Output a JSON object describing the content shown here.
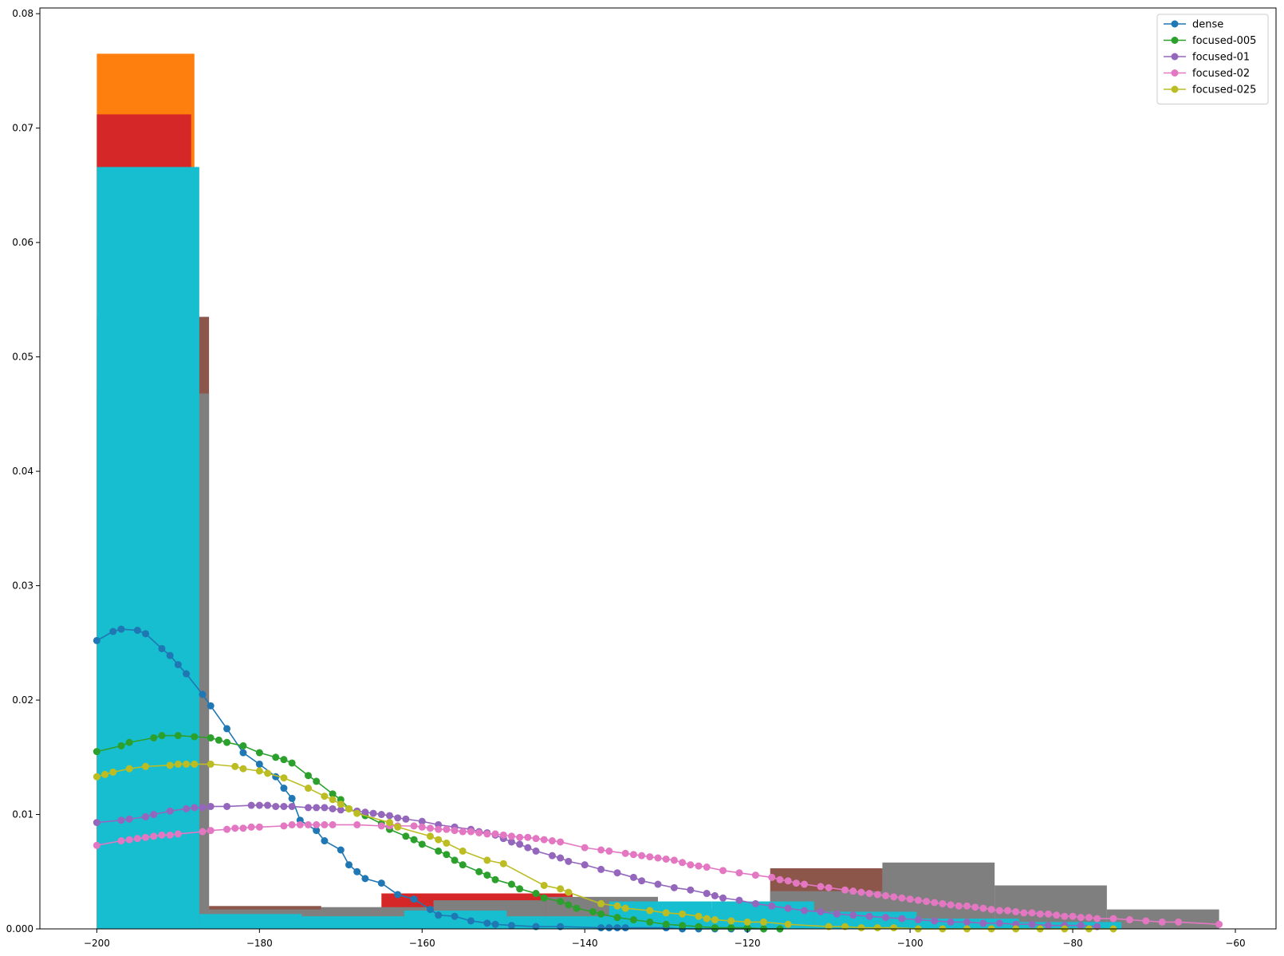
{
  "chart_data": {
    "type": "line",
    "title": "",
    "xlabel": "",
    "ylabel": "",
    "xlim": [
      -207,
      -55
    ],
    "ylim": [
      0,
      0.0805
    ],
    "xticks": [
      -200,
      -180,
      -160,
      -140,
      -120,
      -100,
      -80,
      -60
    ],
    "xtick_labels": [
      "−200",
      "−180",
      "−160",
      "−140",
      "−120",
      "−100",
      "−80",
      "−60"
    ],
    "yticks": [
      0,
      0.01,
      0.02,
      0.03,
      0.04,
      0.05,
      0.06,
      0.07,
      0.08
    ],
    "ytick_labels": [
      "0.000",
      "0.01",
      "0.02",
      "0.03",
      "0.04",
      "0.05",
      "0.06",
      "0.07",
      "0.08"
    ],
    "grid": false,
    "legend_position": "top-right",
    "histograms": [
      {
        "color": "#ff7f0e",
        "bins": [
          [
            -200,
            -188,
            0.0765
          ],
          [
            -188,
            -186.5,
            0.0003
          ],
          [
            -186.5,
            -175,
            0.0001
          ]
        ]
      },
      {
        "color": "#d62728",
        "bins": [
          [
            -200,
            -188.4,
            0.0712
          ],
          [
            -165,
            -141.5,
            0.0031
          ],
          [
            -141.5,
            -118,
            0.0003
          ]
        ]
      },
      {
        "color": "#8c564b",
        "bins": [
          [
            -200,
            -186.2,
            0.0535
          ],
          [
            -186.2,
            -172.4,
            0.002
          ],
          [
            -117.2,
            -103.4,
            0.0053
          ],
          [
            -103.4,
            -89.6,
            0.0038
          ],
          [
            -89.6,
            -75.8,
            0.0003
          ]
        ]
      },
      {
        "color": "#7f7f7f",
        "bins": [
          [
            -200,
            -186.2,
            0.0468
          ],
          [
            -186.2,
            -172.4,
            0.0017
          ],
          [
            -172.4,
            -158.6,
            0.0019
          ],
          [
            -158.6,
            -144.8,
            0.0025
          ],
          [
            -144.8,
            -131,
            0.0028
          ],
          [
            -131,
            -117.2,
            0.0017
          ],
          [
            -117.2,
            -103.4,
            0.0033
          ],
          [
            -103.4,
            -89.6,
            0.0058
          ],
          [
            -89.6,
            -75.8,
            0.0038
          ],
          [
            -75.8,
            -62,
            0.0017
          ]
        ]
      },
      {
        "color": "#17becf",
        "bins": [
          [
            -200,
            -187.4,
            0.0666
          ],
          [
            -187.4,
            -174.8,
            0.0013
          ],
          [
            -174.8,
            -162.2,
            0.0011
          ],
          [
            -162.2,
            -149.6,
            0.0016
          ],
          [
            -149.6,
            -137,
            0.0011
          ],
          [
            -137,
            -124.4,
            0.0024
          ],
          [
            -124.4,
            -111.8,
            0.0024
          ],
          [
            -111.8,
            -99.2,
            0.0015
          ],
          [
            -99.2,
            -86.6,
            0.0009
          ],
          [
            -86.6,
            -74,
            0.0006
          ]
        ]
      }
    ],
    "series": [
      {
        "name": "dense",
        "color": "#1f77b4",
        "x": [
          -200,
          -198,
          -197,
          -195,
          -194,
          -192,
          -191,
          -190,
          -189,
          -187,
          -186,
          -184,
          -182,
          -180,
          -178,
          -177,
          -176,
          -175,
          -173,
          -172,
          -170,
          -169,
          -168,
          -167,
          -165,
          -163,
          -161,
          -159,
          -158,
          -156,
          -154,
          -152,
          -151,
          -149,
          -146,
          -143,
          -138,
          -137,
          -136,
          -135,
          -130,
          -128,
          -126,
          -124,
          -122,
          -120,
          -118,
          -116
        ],
        "y": [
          0.0252,
          0.026,
          0.0262,
          0.0261,
          0.0258,
          0.0245,
          0.0239,
          0.0231,
          0.0223,
          0.0205,
          0.0195,
          0.0175,
          0.0154,
          0.0144,
          0.0133,
          0.0123,
          0.0114,
          0.0095,
          0.0086,
          0.0077,
          0.0069,
          0.0056,
          0.005,
          0.0044,
          0.004,
          0.003,
          0.0026,
          0.0017,
          0.0012,
          0.0011,
          0.0007,
          0.0005,
          0.0004,
          0.0003,
          0.0002,
          0.0002,
          0.0001,
          0.0001,
          0.0001,
          0.0001,
          0.0001,
          0,
          0,
          0,
          0,
          0,
          0,
          0
        ]
      },
      {
        "name": "focused-005",
        "color": "#2ca02c",
        "x": [
          -200,
          -197,
          -196,
          -193,
          -192,
          -190,
          -188,
          -186,
          -185,
          -184,
          -182,
          -180,
          -178,
          -177,
          -176,
          -174,
          -173,
          -171,
          -170,
          -169,
          -167,
          -165,
          -164,
          -162,
          -161,
          -160,
          -158,
          -157,
          -156,
          -155,
          -153,
          -152,
          -151,
          -149,
          -148,
          -146,
          -145,
          -143,
          -142,
          -141,
          -139,
          -138,
          -136,
          -134,
          -132,
          -130,
          -128,
          -126,
          -124,
          -122,
          -120,
          -118,
          -116
        ],
        "y": [
          0.0155,
          0.016,
          0.0163,
          0.0167,
          0.0169,
          0.0169,
          0.0168,
          0.0167,
          0.0165,
          0.0163,
          0.016,
          0.0154,
          0.015,
          0.0148,
          0.0145,
          0.0134,
          0.0129,
          0.0118,
          0.0113,
          0.0105,
          0.0099,
          0.0092,
          0.0087,
          0.0081,
          0.0078,
          0.0074,
          0.0068,
          0.0065,
          0.006,
          0.0056,
          0.005,
          0.0047,
          0.0043,
          0.0039,
          0.0035,
          0.0031,
          0.0027,
          0.0024,
          0.0021,
          0.0018,
          0.0015,
          0.0013,
          0.001,
          0.0008,
          0.0006,
          0.0004,
          0.0003,
          0.0002,
          0.0001,
          0.0001,
          0.0001,
          0,
          0
        ]
      },
      {
        "name": "focused-01",
        "color": "#9467bd",
        "x": [
          -200,
          -197,
          -196,
          -194,
          -193,
          -191,
          -189,
          -188,
          -187,
          -186,
          -184,
          -181,
          -180,
          -179,
          -178,
          -177,
          -176,
          -174,
          -173,
          -172,
          -171,
          -170,
          -168,
          -167,
          -166,
          -165,
          -164,
          -163,
          -162,
          -160,
          -158,
          -156,
          -154,
          -153,
          -152,
          -151,
          -150,
          -149,
          -148,
          -147,
          -146,
          -144,
          -143,
          -142,
          -140,
          -138,
          -136,
          -134,
          -133,
          -131,
          -129,
          -127,
          -125,
          -124,
          -123,
          -121,
          -119,
          -117,
          -115,
          -113,
          -111,
          -109,
          -107,
          -105,
          -103,
          -101,
          -99,
          -97,
          -95,
          -93,
          -91,
          -89,
          -87,
          -85,
          -83,
          -81,
          -79,
          -77
        ],
        "y": [
          0.0093,
          0.0095,
          0.0096,
          0.0098,
          0.01,
          0.0103,
          0.0105,
          0.0106,
          0.0106,
          0.0107,
          0.0107,
          0.0108,
          0.0108,
          0.0108,
          0.0107,
          0.0107,
          0.0107,
          0.0106,
          0.0106,
          0.0106,
          0.0105,
          0.0104,
          0.0103,
          0.0102,
          0.0101,
          0.01,
          0.0099,
          0.0097,
          0.0096,
          0.0094,
          0.0091,
          0.0089,
          0.0087,
          0.0085,
          0.0084,
          0.0082,
          0.0079,
          0.0076,
          0.0074,
          0.0071,
          0.0068,
          0.0064,
          0.0062,
          0.0059,
          0.0056,
          0.0052,
          0.0049,
          0.0045,
          0.0042,
          0.0039,
          0.0036,
          0.0034,
          0.0031,
          0.0029,
          0.0027,
          0.0025,
          0.0022,
          0.002,
          0.0018,
          0.0016,
          0.0015,
          0.0013,
          0.0012,
          0.0011,
          0.001,
          0.0009,
          0.0008,
          0.0007,
          0.0006,
          0.0006,
          0.0005,
          0.0005,
          0.0004,
          0.0004,
          0.0003,
          0.0003,
          0.0003,
          0.0002
        ]
      },
      {
        "name": "focused-02",
        "color": "#e377c2",
        "x": [
          -200,
          -197,
          -196,
          -195,
          -194,
          -193,
          -192,
          -191,
          -190,
          -187,
          -186,
          -184,
          -183,
          -182,
          -181,
          -180,
          -177,
          -176,
          -175,
          -174,
          -173,
          -172,
          -171,
          -168,
          -165,
          -164,
          -163,
          -161,
          -160,
          -159,
          -158,
          -157,
          -156,
          -155,
          -154,
          -153,
          -152,
          -151,
          -150,
          -149,
          -148,
          -147,
          -146,
          -145,
          -144,
          -143,
          -140,
          -138,
          -137,
          -135,
          -134,
          -133,
          -132,
          -131,
          -130,
          -129,
          -128,
          -127,
          -126,
          -125,
          -123,
          -121,
          -119,
          -117,
          -116,
          -115,
          -114,
          -113,
          -111,
          -110,
          -108,
          -107,
          -106,
          -105,
          -104,
          -103,
          -102,
          -101,
          -100,
          -99,
          -98,
          -97,
          -96,
          -95,
          -94,
          -93,
          -92,
          -91,
          -90,
          -89,
          -88,
          -87,
          -86,
          -85,
          -84,
          -83,
          -82,
          -81,
          -80,
          -79,
          -78,
          -77,
          -75,
          -73,
          -71,
          -69,
          -67,
          -62
        ],
        "y": [
          0.0073,
          0.0077,
          0.0078,
          0.0079,
          0.008,
          0.0081,
          0.0082,
          0.0082,
          0.0083,
          0.0085,
          0.0086,
          0.0087,
          0.0088,
          0.0088,
          0.0089,
          0.0089,
          0.009,
          0.0091,
          0.0091,
          0.0091,
          0.0091,
          0.0091,
          0.0091,
          0.0091,
          0.009,
          0.009,
          0.009,
          0.009,
          0.0089,
          0.0088,
          0.0087,
          0.0087,
          0.0086,
          0.0085,
          0.0085,
          0.0084,
          0.0083,
          0.0083,
          0.0082,
          0.0081,
          0.008,
          0.008,
          0.0079,
          0.0078,
          0.0077,
          0.0076,
          0.0071,
          0.0069,
          0.0068,
          0.0066,
          0.0065,
          0.0064,
          0.0063,
          0.0062,
          0.0061,
          0.006,
          0.0058,
          0.0056,
          0.0055,
          0.0054,
          0.0051,
          0.0049,
          0.0047,
          0.0045,
          0.0043,
          0.0042,
          0.004,
          0.0039,
          0.0037,
          0.0036,
          0.0034,
          0.0033,
          0.0032,
          0.0031,
          0.003,
          0.0029,
          0.0028,
          0.0027,
          0.0026,
          0.0025,
          0.0024,
          0.0023,
          0.0022,
          0.0021,
          0.002,
          0.002,
          0.0019,
          0.0018,
          0.0017,
          0.0016,
          0.0016,
          0.0015,
          0.0014,
          0.0014,
          0.0013,
          0.0013,
          0.0012,
          0.0011,
          0.0011,
          0.001,
          0.001,
          0.0009,
          0.0009,
          0.0008,
          0.0007,
          0.0006,
          0.0006,
          0.0004
        ]
      },
      {
        "name": "focused-025",
        "color": "#bcbd22",
        "x": [
          -200,
          -199,
          -198,
          -196,
          -194,
          -191,
          -190,
          -189,
          -188,
          -186,
          -183,
          -182,
          -180,
          -179,
          -177,
          -174,
          -172,
          -171,
          -170,
          -169,
          -168,
          -164,
          -163,
          -159,
          -158,
          -157,
          -155,
          -152,
          -150,
          -145,
          -143,
          -142,
          -138,
          -136,
          -135,
          -132,
          -130,
          -128,
          -126,
          -125,
          -124,
          -122,
          -120,
          -118,
          -115,
          -110,
          -108,
          -106,
          -104,
          -102,
          -99,
          -96,
          -93,
          -90,
          -87,
          -84,
          -81,
          -78,
          -75
        ],
        "y": [
          0.0133,
          0.0135,
          0.0137,
          0.014,
          0.0142,
          0.0143,
          0.0144,
          0.0144,
          0.0144,
          0.0144,
          0.0142,
          0.014,
          0.0138,
          0.0136,
          0.0132,
          0.0123,
          0.0116,
          0.0113,
          0.0109,
          0.0105,
          0.0101,
          0.0093,
          0.0089,
          0.0081,
          0.0078,
          0.0075,
          0.0068,
          0.006,
          0.0057,
          0.0038,
          0.0035,
          0.0032,
          0.0022,
          0.002,
          0.0018,
          0.0016,
          0.0014,
          0.0013,
          0.0011,
          0.0009,
          0.0008,
          0.0007,
          0.0006,
          0.0006,
          0.0004,
          0.0002,
          0.0002,
          0.0001,
          0.0001,
          0.0001,
          0,
          0,
          0,
          0,
          0,
          0,
          0,
          0,
          0
        ]
      }
    ]
  }
}
